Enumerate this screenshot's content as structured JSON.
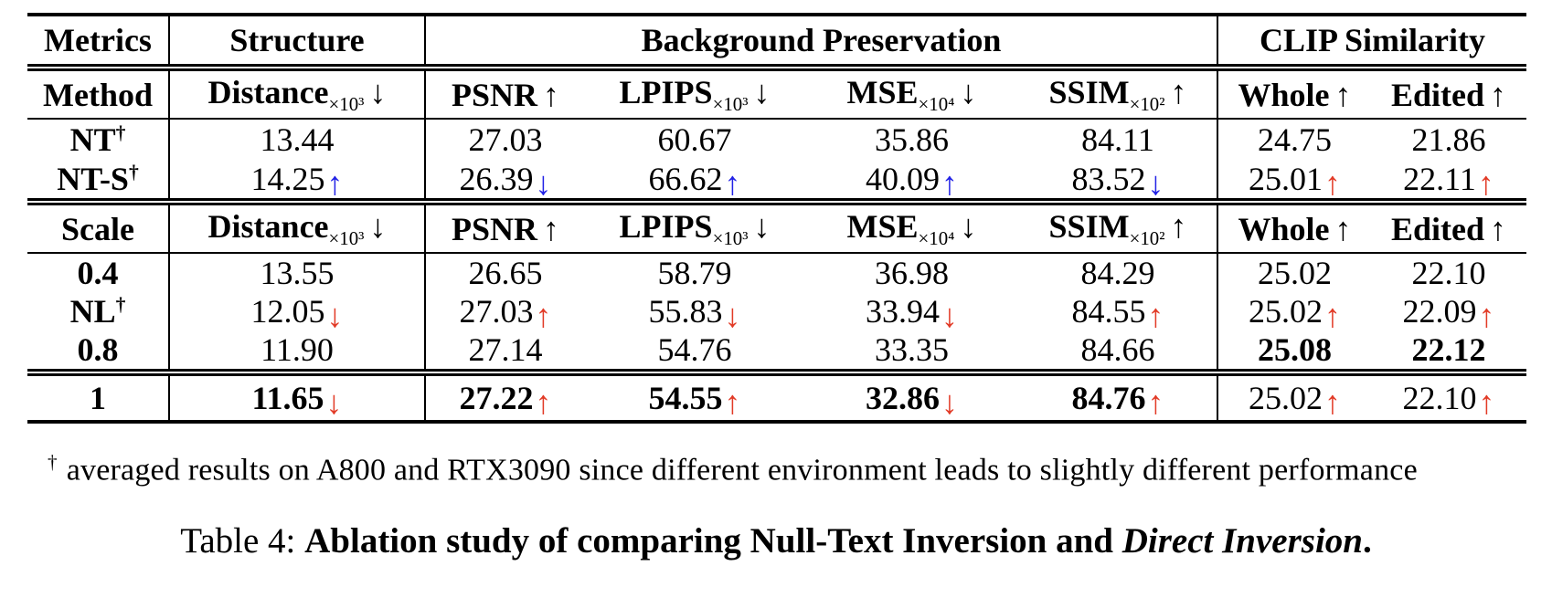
{
  "colors": {
    "red": "#e23b27",
    "blue": "#2222e6",
    "text": "#000000"
  },
  "table": {
    "group_header": {
      "metrics": "Metrics",
      "structure": "Structure",
      "background": "Background Preservation",
      "clip": "CLIP Similarity"
    },
    "columns": [
      {
        "name": "Distance",
        "sub": "×10³",
        "arrow": "↓"
      },
      {
        "name": "PSNR",
        "sub": "",
        "arrow": "↑"
      },
      {
        "name": "LPIPS",
        "sub": "×10³",
        "arrow": "↓"
      },
      {
        "name": "MSE",
        "sub": "×10⁴",
        "arrow": "↓"
      },
      {
        "name": "SSIM",
        "sub": "×10²",
        "arrow": "↑"
      },
      {
        "name": "Whole",
        "sub": "",
        "arrow": "↑"
      },
      {
        "name": "Edited",
        "sub": "",
        "arrow": "↑"
      }
    ],
    "section1": {
      "row_label_header": "Method",
      "rows": [
        {
          "label": "NT",
          "label_sup": "†",
          "cells": [
            {
              "v": "13.44"
            },
            {
              "v": "27.03"
            },
            {
              "v": "60.67"
            },
            {
              "v": "35.86"
            },
            {
              "v": "84.11"
            },
            {
              "v": "24.75"
            },
            {
              "v": "21.86"
            }
          ]
        },
        {
          "label": "NT-S",
          "label_sup": "†",
          "cells": [
            {
              "v": "14.25",
              "arrow": "↑",
              "color": "blue"
            },
            {
              "v": "26.39",
              "arrow": "↓",
              "color": "blue"
            },
            {
              "v": "66.62",
              "arrow": "↑",
              "color": "blue"
            },
            {
              "v": "40.09",
              "arrow": "↑",
              "color": "blue"
            },
            {
              "v": "83.52",
              "arrow": "↓",
              "color": "blue"
            },
            {
              "v": "25.01",
              "arrow": "↑",
              "color": "red"
            },
            {
              "v": "22.11",
              "arrow": "↑",
              "color": "red"
            }
          ]
        }
      ]
    },
    "section2": {
      "row_label_header": "Scale",
      "rows": [
        {
          "label": "0.4",
          "cells": [
            {
              "v": "13.55"
            },
            {
              "v": "26.65"
            },
            {
              "v": "58.79"
            },
            {
              "v": "36.98"
            },
            {
              "v": "84.29"
            },
            {
              "v": "25.02"
            },
            {
              "v": "22.10"
            }
          ]
        },
        {
          "label": "NL",
          "label_sup": "†",
          "cells": [
            {
              "v": "12.05",
              "arrow": "↓",
              "color": "red"
            },
            {
              "v": "27.03",
              "arrow": "↑",
              "color": "red"
            },
            {
              "v": "55.83",
              "arrow": "↓",
              "color": "red"
            },
            {
              "v": "33.94",
              "arrow": "↓",
              "color": "red"
            },
            {
              "v": "84.55",
              "arrow": "↑",
              "color": "red"
            },
            {
              "v": "25.02",
              "arrow": "↑",
              "color": "red"
            },
            {
              "v": "22.09",
              "arrow": "↑",
              "color": "red"
            }
          ]
        },
        {
          "label": "0.8",
          "cells": [
            {
              "v": "11.90"
            },
            {
              "v": "27.14"
            },
            {
              "v": "54.76"
            },
            {
              "v": "33.35"
            },
            {
              "v": "84.66"
            },
            {
              "v": "25.08",
              "bold": true
            },
            {
              "v": "22.12",
              "bold": true
            }
          ]
        }
      ]
    },
    "section3": {
      "rows": [
        {
          "label": "1",
          "cells": [
            {
              "v": "11.65",
              "bold": true,
              "arrow": "↓",
              "color": "red"
            },
            {
              "v": "27.22",
              "bold": true,
              "arrow": "↑",
              "color": "red"
            },
            {
              "v": "54.55",
              "bold": true,
              "arrow": "↑",
              "color": "red"
            },
            {
              "v": "32.86",
              "bold": true,
              "arrow": "↓",
              "color": "red"
            },
            {
              "v": "84.76",
              "bold": true,
              "arrow": "↑",
              "color": "red"
            },
            {
              "v": "25.02",
              "arrow": "↑",
              "color": "red"
            },
            {
              "v": "22.10",
              "arrow": "↑",
              "color": "red"
            }
          ]
        }
      ]
    }
  },
  "footnote": {
    "symbol": "†",
    "text": "averaged results on A800 and RTX3090 since different environment leads to slightly different performance"
  },
  "caption": {
    "prefix": "Table 4: ",
    "bold_part": "Ablation study of comparing Null-Text Inversion and ",
    "italic_part": "Direct Inversion",
    "suffix": "."
  }
}
